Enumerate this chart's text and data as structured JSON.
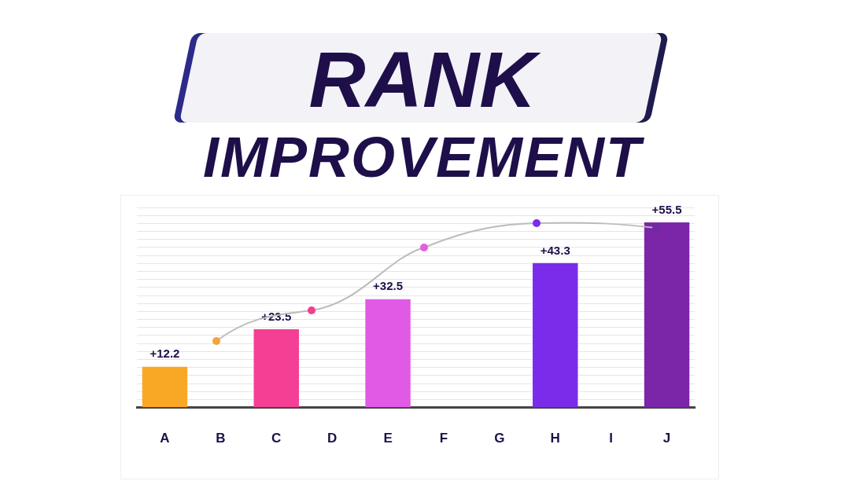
{
  "chart_data": {
    "type": "bar",
    "title": "RANK",
    "subtitle": "IMPROVEMENT",
    "categories": [
      "A",
      "B",
      "C",
      "D",
      "E",
      "F",
      "G",
      "H",
      "I",
      "J"
    ],
    "values": [
      12.2,
      null,
      23.5,
      null,
      32.5,
      null,
      null,
      43.3,
      null,
      55.5
    ],
    "value_labels": [
      "+12.2",
      null,
      "+23.5",
      null,
      "+32.5",
      null,
      null,
      "+43.3",
      null,
      "+55.5"
    ],
    "colors": [
      "#f9a825",
      "#000000",
      "#f43f94",
      "#000000",
      "#e05ae6",
      "#000000",
      "#000000",
      "#7b2cea",
      "#000000",
      "#7b26a8"
    ],
    "grid": "y",
    "tick_labels": "x"
  }
}
